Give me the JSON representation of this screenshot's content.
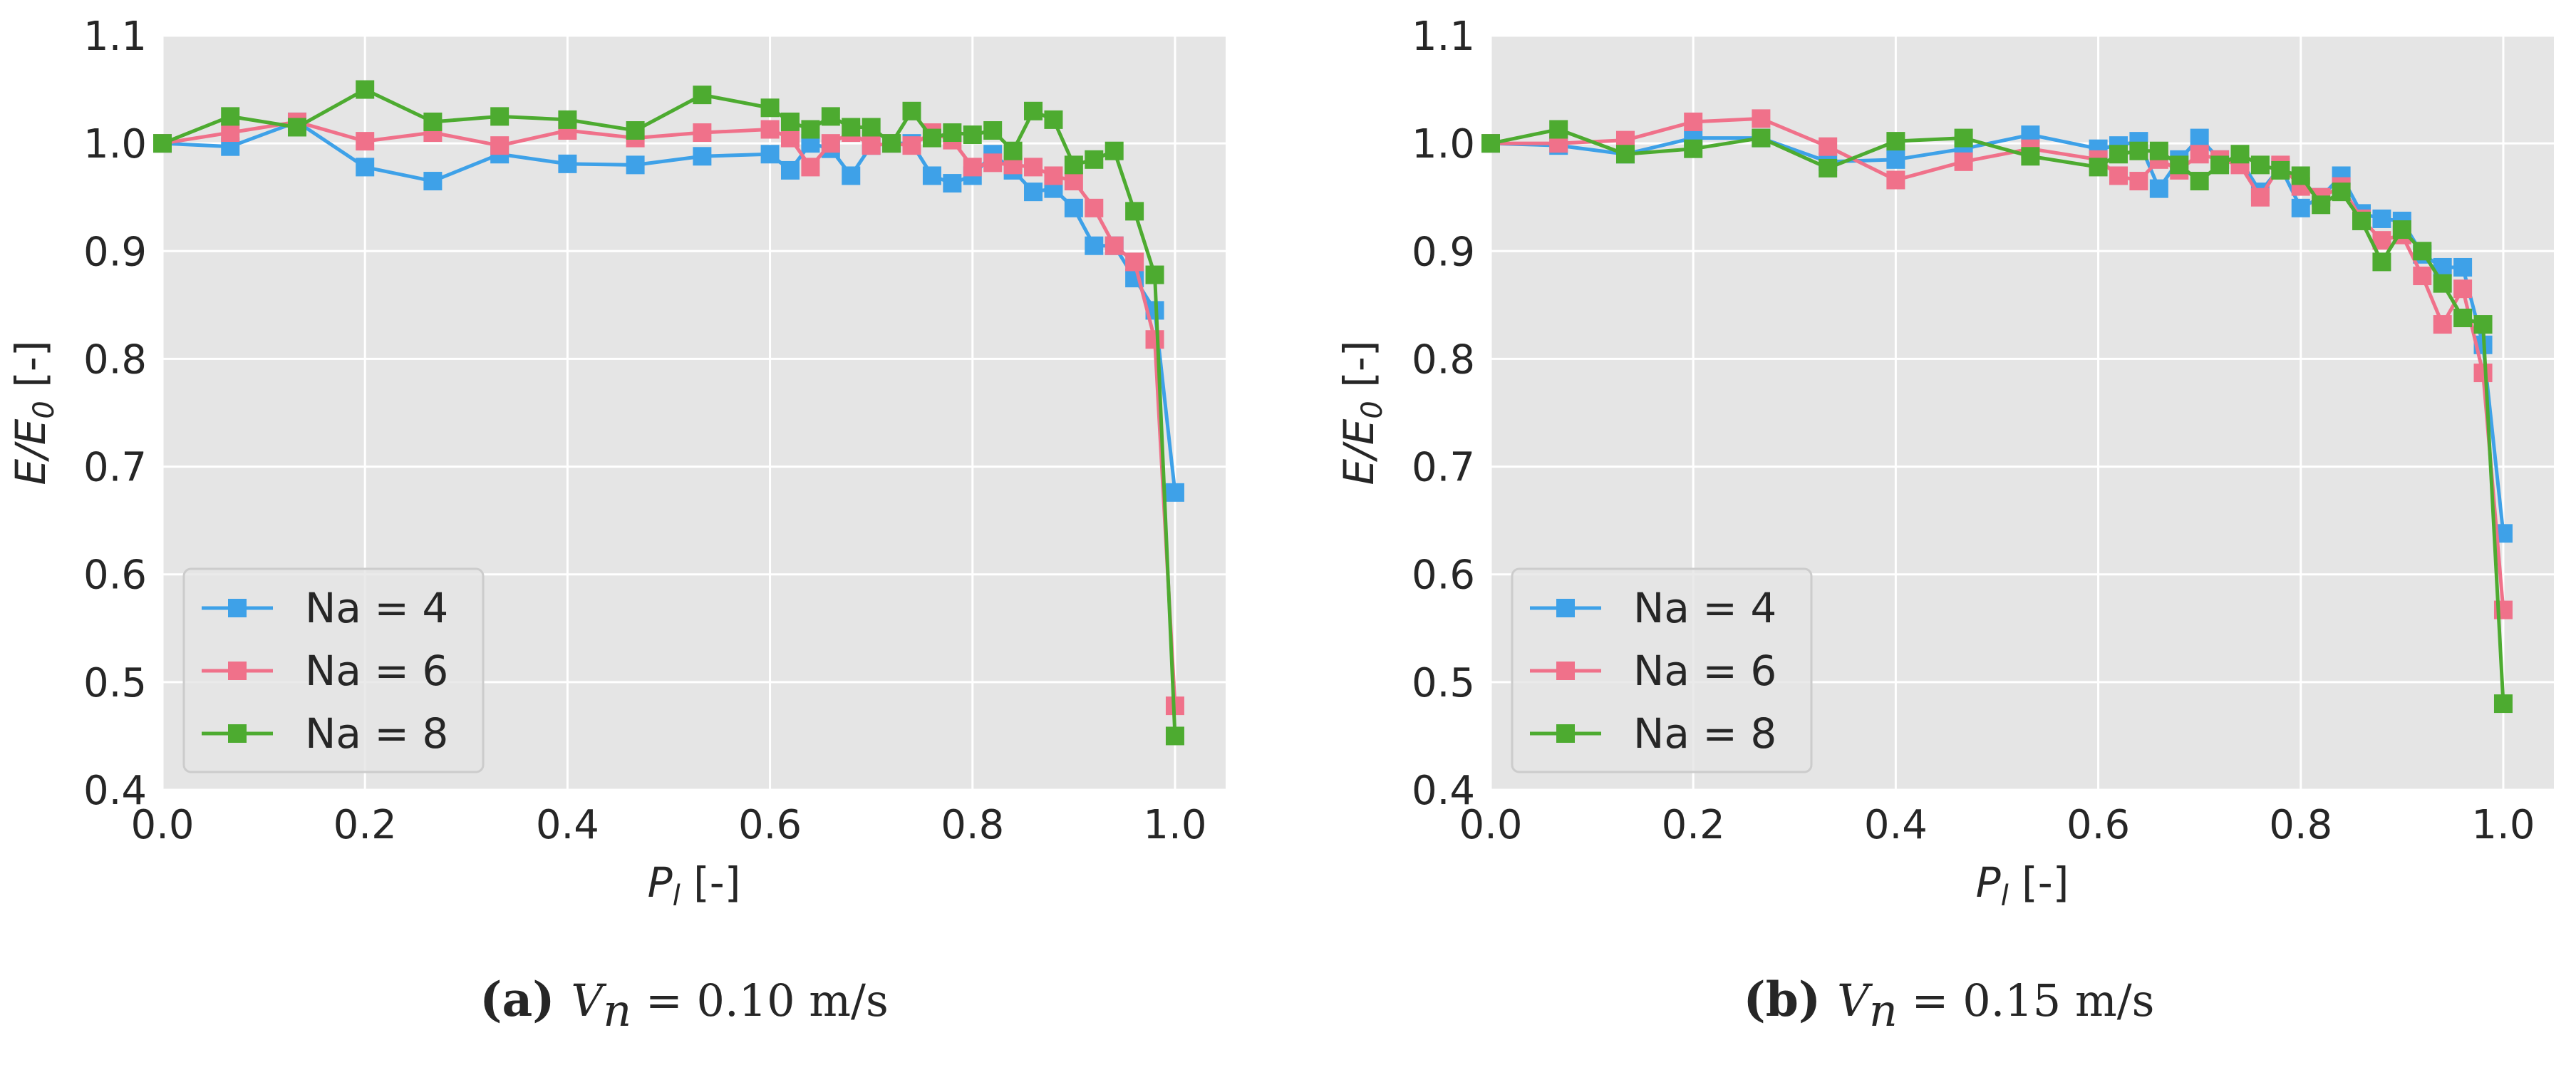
{
  "chart_data": [
    {
      "type": "line",
      "marker": "square",
      "xlabel": "P_l [-]",
      "ylabel": "E/E_0 [-]",
      "xlim": [
        0.0,
        1.05
      ],
      "ylim": [
        0.4,
        1.1
      ],
      "xticks": [
        "0.0",
        "0.2",
        "0.4",
        "0.6",
        "0.8",
        "1.0"
      ],
      "yticks": [
        "0.4",
        "0.5",
        "0.6",
        "0.7",
        "0.8",
        "0.9",
        "1.0",
        "1.1"
      ],
      "grid": true,
      "legend_position": "lower-left",
      "caption": {
        "label": "(a)",
        "var": "V_n",
        "value": "= 0.10 m/s"
      },
      "series": [
        {
          "name": "Na = 4",
          "color": "#3ea1e8",
          "x": [
            0.0,
            0.067,
            0.133,
            0.2,
            0.267,
            0.333,
            0.4,
            0.467,
            0.533,
            0.6,
            0.62,
            0.64,
            0.66,
            0.68,
            0.7,
            0.72,
            0.74,
            0.76,
            0.78,
            0.8,
            0.82,
            0.84,
            0.86,
            0.88,
            0.9,
            0.92,
            0.94,
            0.96,
            0.98,
            1.0
          ],
          "y": [
            1.0,
            0.997,
            1.02,
            0.978,
            0.965,
            0.99,
            0.981,
            0.98,
            0.988,
            0.99,
            0.975,
            1.0,
            0.995,
            0.97,
            0.998,
            1.0,
            1.0,
            0.97,
            0.963,
            0.97,
            0.99,
            0.975,
            0.955,
            0.958,
            0.94,
            0.905,
            0.905,
            0.875,
            0.845,
            0.676
          ]
        },
        {
          "name": "Na = 6",
          "color": "#f0718a",
          "x": [
            0.0,
            0.067,
            0.133,
            0.2,
            0.267,
            0.333,
            0.4,
            0.467,
            0.533,
            0.6,
            0.62,
            0.64,
            0.66,
            0.68,
            0.7,
            0.72,
            0.74,
            0.76,
            0.78,
            0.8,
            0.82,
            0.84,
            0.86,
            0.88,
            0.9,
            0.92,
            0.94,
            0.96,
            0.98,
            1.0
          ],
          "y": [
            1.0,
            1.01,
            1.02,
            1.002,
            1.01,
            0.998,
            1.012,
            1.005,
            1.01,
            1.013,
            1.005,
            0.978,
            1.0,
            1.01,
            0.998,
            1.0,
            0.998,
            1.01,
            1.003,
            0.978,
            0.982,
            0.98,
            0.978,
            0.97,
            0.965,
            0.94,
            0.905,
            0.89,
            0.818,
            0.478
          ]
        },
        {
          "name": "Na = 8",
          "color": "#4dab30",
          "x": [
            0.0,
            0.067,
            0.133,
            0.2,
            0.267,
            0.333,
            0.4,
            0.467,
            0.533,
            0.6,
            0.62,
            0.64,
            0.66,
            0.68,
            0.7,
            0.72,
            0.74,
            0.76,
            0.78,
            0.8,
            0.82,
            0.84,
            0.86,
            0.88,
            0.9,
            0.92,
            0.94,
            0.96,
            0.98,
            1.0
          ],
          "y": [
            1.0,
            1.025,
            1.015,
            1.05,
            1.02,
            1.025,
            1.022,
            1.012,
            1.045,
            1.033,
            1.02,
            1.013,
            1.025,
            1.015,
            1.015,
            1.0,
            1.03,
            1.005,
            1.01,
            1.008,
            1.012,
            0.993,
            1.03,
            1.022,
            0.98,
            0.985,
            0.993,
            0.937,
            0.878,
            0.45
          ]
        }
      ]
    },
    {
      "type": "line",
      "marker": "square",
      "xlabel": "P_l [-]",
      "ylabel": "E/E_0 [-]",
      "xlim": [
        0.0,
        1.05
      ],
      "ylim": [
        0.4,
        1.1
      ],
      "xticks": [
        "0.0",
        "0.2",
        "0.4",
        "0.6",
        "0.8",
        "1.0"
      ],
      "yticks": [
        "0.4",
        "0.5",
        "0.6",
        "0.7",
        "0.8",
        "0.9",
        "1.0",
        "1.1"
      ],
      "grid": true,
      "legend_position": "lower-left",
      "caption": {
        "label": "(b)",
        "var": "V_n",
        "value": "= 0.15 m/s"
      },
      "series": [
        {
          "name": "Na = 4",
          "color": "#3ea1e8",
          "x": [
            0.0,
            0.067,
            0.133,
            0.2,
            0.267,
            0.333,
            0.4,
            0.467,
            0.533,
            0.6,
            0.62,
            0.64,
            0.66,
            0.68,
            0.7,
            0.72,
            0.74,
            0.76,
            0.78,
            0.8,
            0.82,
            0.84,
            0.86,
            0.88,
            0.9,
            0.92,
            0.94,
            0.96,
            0.98,
            1.0
          ],
          "y": [
            1.0,
            0.998,
            0.99,
            1.005,
            1.005,
            0.983,
            0.985,
            0.995,
            1.008,
            0.995,
            0.998,
            1.002,
            0.958,
            0.985,
            1.005,
            0.985,
            0.985,
            0.955,
            0.978,
            0.94,
            0.95,
            0.97,
            0.935,
            0.93,
            0.928,
            0.897,
            0.885,
            0.885,
            0.813,
            0.638
          ]
        },
        {
          "name": "Na = 6",
          "color": "#f0718a",
          "x": [
            0.0,
            0.067,
            0.133,
            0.2,
            0.267,
            0.333,
            0.4,
            0.467,
            0.533,
            0.6,
            0.62,
            0.64,
            0.66,
            0.68,
            0.7,
            0.72,
            0.74,
            0.76,
            0.78,
            0.8,
            0.82,
            0.84,
            0.86,
            0.88,
            0.9,
            0.92,
            0.94,
            0.96,
            0.98,
            1.0
          ],
          "y": [
            1.0,
            1.0,
            1.003,
            1.02,
            1.023,
            0.997,
            0.966,
            0.983,
            0.995,
            0.985,
            0.97,
            0.965,
            0.985,
            0.975,
            0.99,
            0.985,
            0.98,
            0.95,
            0.98,
            0.96,
            0.95,
            0.96,
            0.93,
            0.91,
            0.915,
            0.877,
            0.832,
            0.865,
            0.787,
            0.567
          ]
        },
        {
          "name": "Na = 8",
          "color": "#4dab30",
          "x": [
            0.0,
            0.067,
            0.133,
            0.2,
            0.267,
            0.333,
            0.4,
            0.467,
            0.533,
            0.6,
            0.62,
            0.64,
            0.66,
            0.68,
            0.7,
            0.72,
            0.74,
            0.76,
            0.78,
            0.8,
            0.82,
            0.84,
            0.86,
            0.88,
            0.9,
            0.92,
            0.94,
            0.96,
            0.98,
            1.0
          ],
          "y": [
            1.0,
            1.013,
            0.99,
            0.995,
            1.005,
            0.977,
            1.002,
            1.005,
            0.988,
            0.978,
            0.99,
            0.993,
            0.993,
            0.98,
            0.965,
            0.98,
            0.99,
            0.98,
            0.975,
            0.97,
            0.943,
            0.955,
            0.928,
            0.89,
            0.92,
            0.9,
            0.87,
            0.838,
            0.832,
            0.48
          ]
        }
      ]
    }
  ]
}
